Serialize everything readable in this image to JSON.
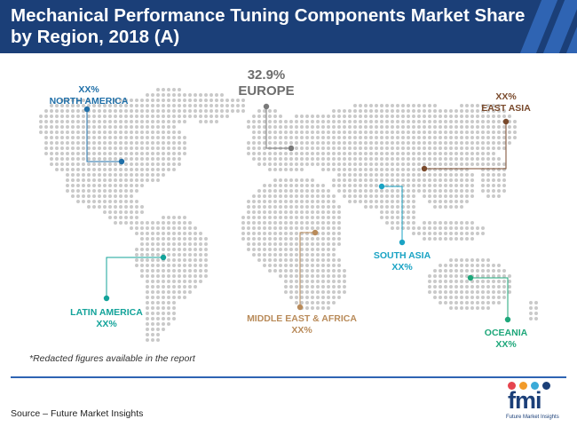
{
  "title": "Mechanical Performance Tuning Components Market Share by Region, 2018 (A)",
  "regions": [
    {
      "id": "north-america",
      "name": "NORTH AMERICA",
      "value": "XX%",
      "color": "#1f6fa8"
    },
    {
      "id": "europe",
      "name": "EUROPE",
      "value": "32.9%",
      "color": "#7a7a7a"
    },
    {
      "id": "east-asia",
      "name": "EAST ASIA",
      "value": "XX%",
      "color": "#7a4a2c"
    },
    {
      "id": "south-asia",
      "name": "SOUTH ASIA",
      "value": "XX%",
      "color": "#1aa3c4"
    },
    {
      "id": "latin-america",
      "name": "LATIN AMERICA",
      "value": "XX%",
      "color": "#13a39a"
    },
    {
      "id": "middle-east-africa",
      "name": "MIDDLE EAST & AFRICA",
      "value": "XX%",
      "color": "#b98b5a"
    },
    {
      "id": "oceania",
      "name": "OCEANIA",
      "value": "XX%",
      "color": "#1ea77a"
    }
  ],
  "footnote": "*Redacted figures available in the report",
  "source": "Source – Future Market Insights",
  "logo": {
    "text": "fmi",
    "subtitle": "Future Market Insights",
    "dot_colors": [
      "#e6454f",
      "#f29b2a",
      "#3aaad8",
      "#1b3f78"
    ]
  }
}
